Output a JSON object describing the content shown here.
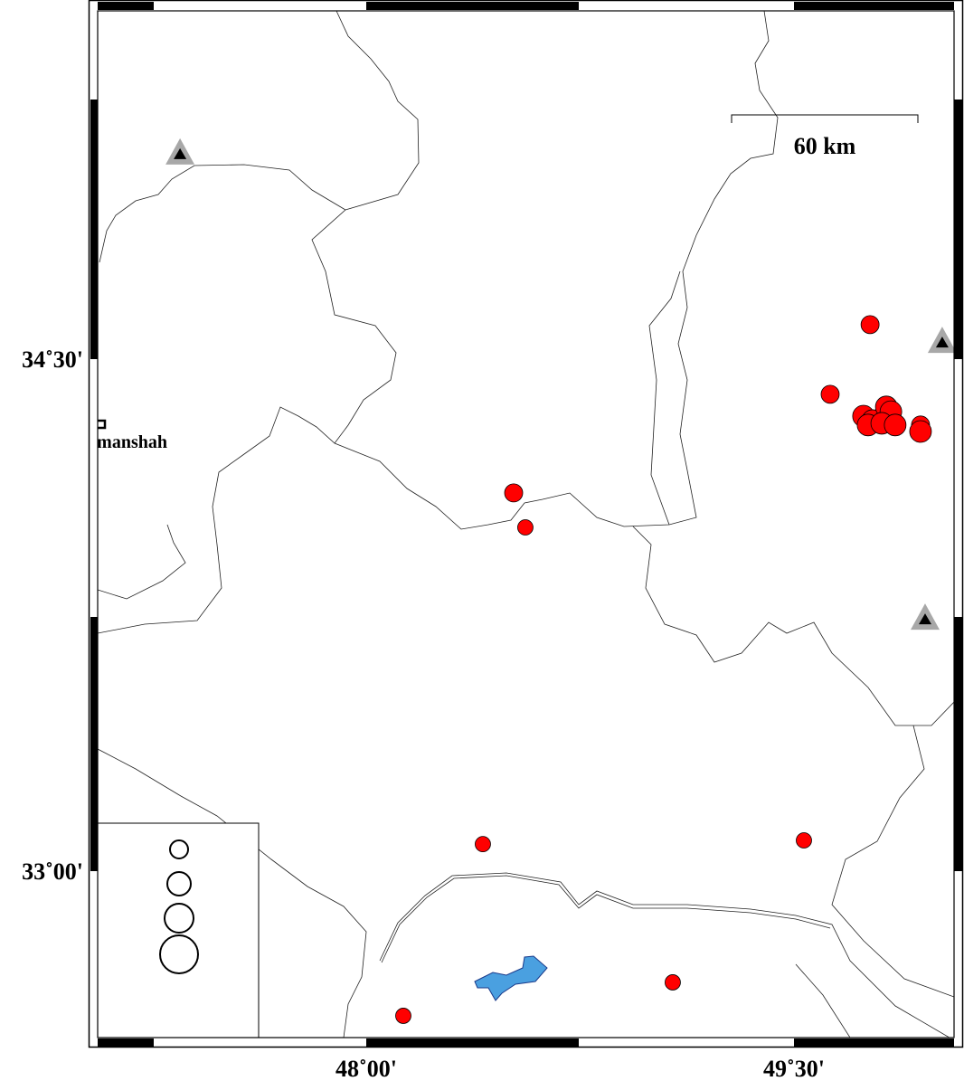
{
  "map": {
    "lon_range": [
      47.0,
      50.1
    ],
    "lat_range": [
      32.55,
      35.35
    ],
    "x_ticks": [
      {
        "lon": 48.0,
        "label": "48˚00'"
      },
      {
        "lon": 49.5,
        "label": "49˚30'"
      }
    ],
    "y_ticks": [
      {
        "lat": 34.5,
        "label": "34˚30'"
      },
      {
        "lat": 33.0,
        "label": "33˚00'"
      }
    ],
    "scale_bar": {
      "label": "60 km"
    },
    "city": {
      "name": "Kermanshah",
      "lon": 47.06,
      "lat": 34.31
    },
    "colors": {
      "event": "#ff0000",
      "station_outer": "#a8a8a8",
      "station_inner": "#000000",
      "lake": "#4aa0e0"
    },
    "events": [
      {
        "lon": 49.767,
        "lat": 34.601,
        "size": "small"
      },
      {
        "lon": 49.627,
        "lat": 34.397,
        "size": "small"
      },
      {
        "lon": 49.744,
        "lat": 34.333,
        "size": "large"
      },
      {
        "lon": 49.776,
        "lat": 34.32,
        "size": "large"
      },
      {
        "lon": 49.824,
        "lat": 34.36,
        "size": "large"
      },
      {
        "lon": 49.84,
        "lat": 34.346,
        "size": "large"
      },
      {
        "lon": 49.76,
        "lat": 34.307,
        "size": "large"
      },
      {
        "lon": 49.808,
        "lat": 34.312,
        "size": "large"
      },
      {
        "lon": 49.855,
        "lat": 34.307,
        "size": "large"
      },
      {
        "lon": 49.944,
        "lat": 34.307,
        "size": "small"
      },
      {
        "lon": 49.944,
        "lat": 34.288,
        "size": "large"
      },
      {
        "lon": 48.517,
        "lat": 34.108,
        "size": "small"
      },
      {
        "lon": 48.558,
        "lat": 34.007,
        "size": "tiny"
      },
      {
        "lon": 48.409,
        "lat": 33.079,
        "size": "tiny"
      },
      {
        "lon": 49.535,
        "lat": 33.09,
        "size": "tiny"
      },
      {
        "lon": 49.075,
        "lat": 32.674,
        "size": "tiny"
      },
      {
        "lon": 48.13,
        "lat": 32.576,
        "size": "tiny"
      }
    ],
    "stations": [
      {
        "lon": 47.347,
        "lat": 35.102
      },
      {
        "lon": 50.02,
        "lat": 34.55
      },
      {
        "lon": 49.96,
        "lat": 33.739
      }
    ],
    "legend": {
      "circles": 4
    }
  }
}
